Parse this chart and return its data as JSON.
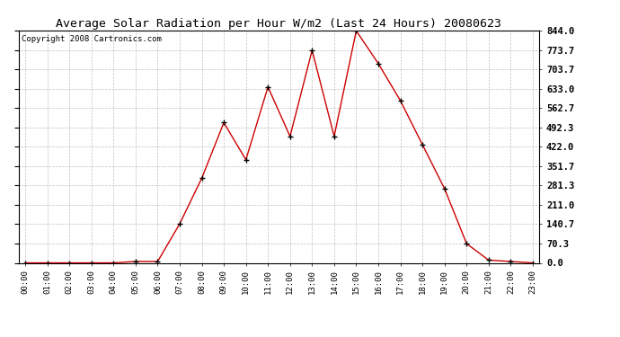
{
  "title": "Average Solar Radiation per Hour W/m2 (Last 24 Hours) 20080623",
  "copyright": "Copyright 2008 Cartronics.com",
  "hours": [
    0,
    1,
    2,
    3,
    4,
    5,
    6,
    7,
    8,
    9,
    10,
    11,
    12,
    13,
    14,
    15,
    16,
    17,
    18,
    19,
    20,
    21,
    22,
    23
  ],
  "hour_labels": [
    "00:00",
    "01:00",
    "02:00",
    "03:00",
    "04:00",
    "05:00",
    "06:00",
    "07:00",
    "08:00",
    "09:00",
    "10:00",
    "11:00",
    "12:00",
    "13:00",
    "14:00",
    "15:00",
    "16:00",
    "17:00",
    "18:00",
    "19:00",
    "20:00",
    "21:00",
    "22:00",
    "23:00"
  ],
  "values": [
    0,
    0,
    0,
    0,
    0,
    5,
    5,
    142,
    308,
    510,
    375,
    640,
    460,
    773,
    460,
    844,
    725,
    590,
    430,
    270,
    70,
    10,
    5,
    0
  ],
  "line_color": "#cc0000",
  "marker_color": "#000000",
  "bg_color": "#ffffff",
  "grid_color": "#b0b0b0",
  "ylim_max": 844.0,
  "ytick_values": [
    0.0,
    70.3,
    140.7,
    211.0,
    281.3,
    351.7,
    422.0,
    492.3,
    562.7,
    633.0,
    703.7,
    773.7,
    844.0
  ],
  "ytick_labels": [
    "0.0",
    "70.3",
    "140.7",
    "211.0",
    "281.3",
    "351.7",
    "422.0",
    "492.3",
    "562.7",
    "633.0",
    "703.7",
    "773.7",
    "844.0"
  ],
  "title_fontsize": 9.5,
  "copyright_fontsize": 6.5,
  "tick_fontsize": 6.5,
  "ytick_fontsize": 7.5
}
